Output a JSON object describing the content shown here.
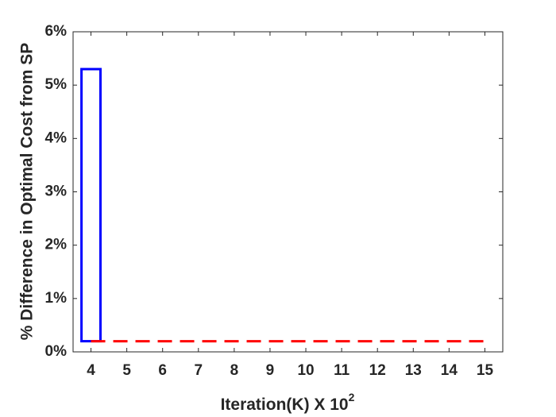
{
  "chart_data": {
    "type": "bar",
    "xlabel": "Iteration(K) X 10",
    "xlabel_superscript": "2",
    "ylabel": "% Difference in Optimal Cost from SP",
    "xlim": [
      3.5,
      15.5
    ],
    "xticks": [
      4,
      5,
      6,
      7,
      8,
      9,
      10,
      11,
      12,
      13,
      14,
      15
    ],
    "ylim": [
      0,
      6
    ],
    "yticks": [
      {
        "value": 0,
        "label": "0%"
      },
      {
        "value": 1,
        "label": "1%"
      },
      {
        "value": 2,
        "label": "2%"
      },
      {
        "value": 3,
        "label": "3%"
      },
      {
        "value": 4,
        "label": "4%"
      },
      {
        "value": 5,
        "label": "5%"
      },
      {
        "value": 6,
        "label": "6%"
      }
    ],
    "grid": false,
    "series": [
      {
        "type": "bar",
        "color": "#0000ff",
        "base_value": 0.2,
        "x": [
          4
        ],
        "values": [
          5.3
        ]
      },
      {
        "type": "line",
        "color": "#ff0000",
        "dashed": true,
        "x": [
          4,
          15
        ],
        "values": [
          0.2,
          0.2
        ]
      }
    ]
  }
}
